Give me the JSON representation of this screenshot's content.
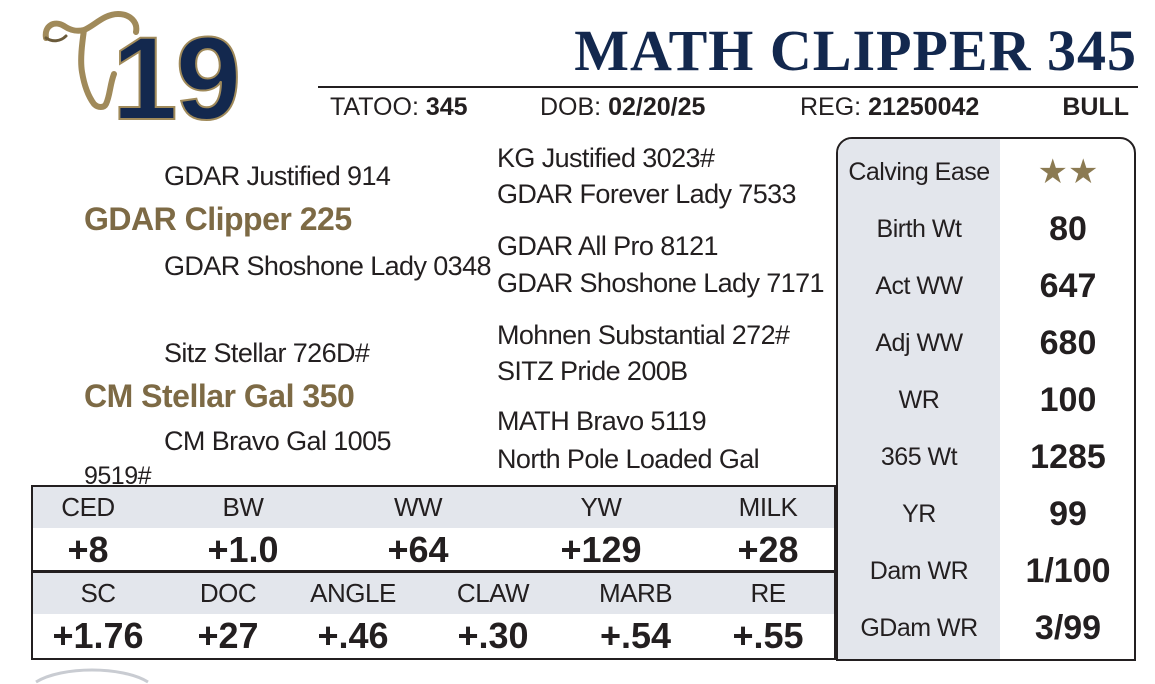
{
  "lot_number": "19",
  "animal_name": "MATH CLIPPER 345",
  "info": {
    "tattoo_label": "TATOO:",
    "tattoo_value": "345",
    "dob_label": "DOB:",
    "dob_value": "02/20/25",
    "reg_label": "REG:",
    "reg_value": "21250042",
    "sex": "BULL"
  },
  "pedigree": {
    "sire": "GDAR Clipper 225",
    "sire_sire": "GDAR Justified 914",
    "sire_dam": "GDAR Shoshone Lady 0348",
    "sire_sire_sire": "KG Justified 3023#",
    "sire_sire_dam": "GDAR Forever Lady 7533",
    "sire_dam_sire": "GDAR All Pro 8121",
    "sire_dam_dam": "GDAR Shoshone Lady 7171",
    "dam": "CM Stellar Gal 350",
    "dam_sire": "Sitz Stellar 726D#",
    "dam_dam": "CM Bravo Gal 1005",
    "dam_sire_sire": "Mohnen Substantial 272#",
    "dam_sire_dam": "SITZ Pride 200B",
    "dam_dam_sire": "MATH Bravo 5119",
    "dam_dam_dam": "North Pole Loaded Gal",
    "extra_note": "9519#"
  },
  "stats": [
    {
      "label": "Calving Ease",
      "value": "★★",
      "type": "stars"
    },
    {
      "label": "Birth Wt",
      "value": "80"
    },
    {
      "label": "Act WW",
      "value": "647"
    },
    {
      "label": "Adj WW",
      "value": "680"
    },
    {
      "label": "WR",
      "value": "100"
    },
    {
      "label": "365 Wt",
      "value": "1285"
    },
    {
      "label": "YR",
      "value": "99"
    },
    {
      "label": "Dam WR",
      "value": "1/100"
    },
    {
      "label": "GDam WR",
      "value": "3/99"
    }
  ],
  "epd_row1": {
    "headers": [
      "CED",
      "BW",
      "WW",
      "YW",
      "MILK"
    ],
    "values": [
      "+8",
      "+1.0",
      "+64",
      "+129",
      "+28"
    ]
  },
  "epd_row2": {
    "headers": [
      "SC",
      "DOC",
      "ANGLE",
      "CLAW",
      "MARB",
      "RE"
    ],
    "values": [
      "+1.76",
      "+27",
      "+.46",
      "+.30",
      "+.54",
      "+.55"
    ]
  },
  "colors": {
    "navy": "#13284e",
    "gold": "#7d6a45",
    "band": "#e3e6ec",
    "star": "#8b7a52"
  },
  "icons": {
    "logo": "cow-head-outline-icon"
  }
}
